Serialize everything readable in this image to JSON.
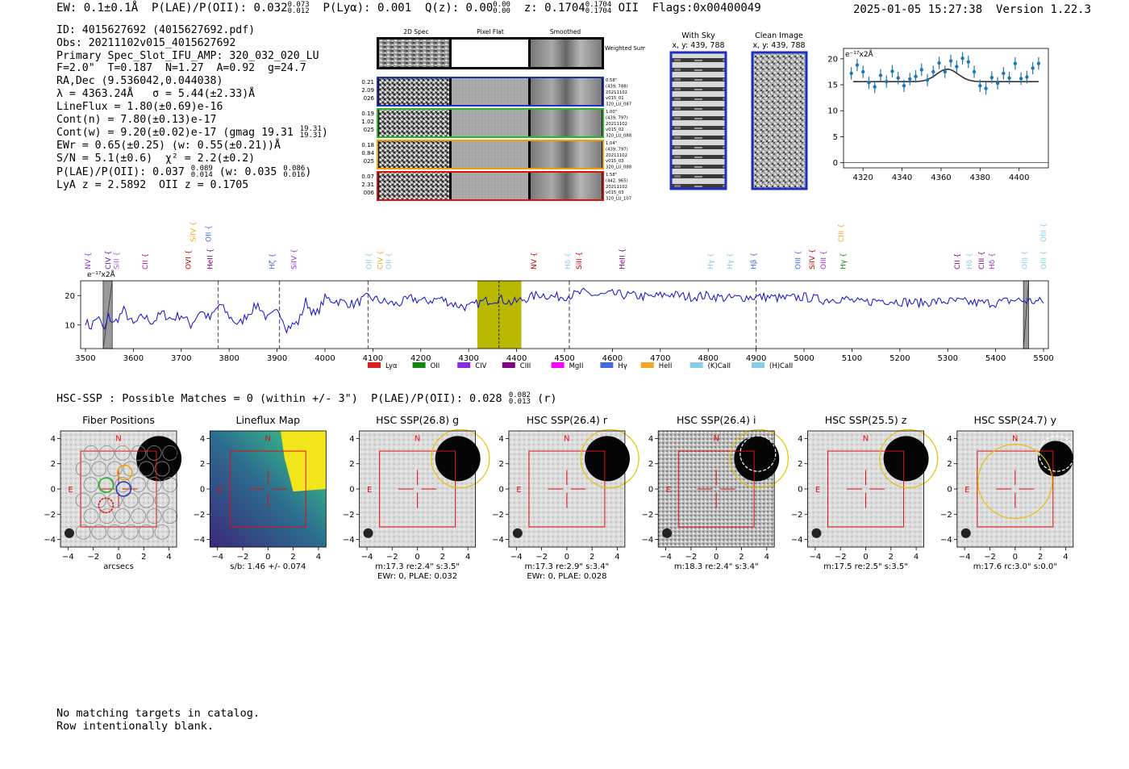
{
  "header": {
    "ew": "EW: 0.1±0.1Å",
    "plae_label": "P(LAE)/P(OII): 0.032",
    "plae_hi": "0.073",
    "plae_lo": "0.012",
    "plya": "P(Lyα): 0.001",
    "qz_label": "Q(z): 0.00",
    "qz_hi": "0.00",
    "qz_lo": "0.00",
    "z_label": "z: 0.1704",
    "z_hi": "0.1704",
    "z_lo": "0.1704",
    "z_line": "OII",
    "flags": "Flags:0x00400049",
    "timestamp": "2025-01-05 15:27:38",
    "version": "Version 1.22.3"
  },
  "info": {
    "id": "ID: 4015627692 (4015627692.pdf)",
    "obs": "Obs: 20211102v015_4015627692",
    "primary": "Primary Spec_Slot_IFU_AMP: 320_032_020_LU",
    "f_line": "F=2.0\"  T=0.187  N=1.27  A=0.92  g=24.7",
    "radec": "RA,Dec (9.536042,0.044038)",
    "lambda": "λ = 4363.24Å   σ = 5.44(±2.33)Å",
    "lineflux": "LineFlux = 1.80(±0.69)e-16",
    "contn": "Cont(n) = 7.80(±0.13)e-17",
    "contw_a": "Cont(w) = 9.20(±0.02)e-17 (gmag 19.31",
    "contw_hi": "19.31",
    "contw_lo": "19.31",
    "contw_b": ")",
    "ewr": "EWr = 0.65(±0.25) (w: 0.55(±0.21))Å",
    "sn": "S/N = 5.1(±0.6)  χ² = 2.2(±0.2)",
    "plae_a": "P(LAE)/P(OII): 0.037",
    "plae_hi": "0.089",
    "plae_lo": "0.014",
    "plae_b": "(w: 0.035",
    "plae_w_hi": "0.086",
    "plae_w_lo": "0.016",
    "plae_c": ")",
    "zline": "LyA z = 2.5892  OII z = 0.1705"
  },
  "cutouts": {
    "col_headers": [
      "2D Spec",
      "Pixel Flat",
      "Smoothed"
    ],
    "weighted_label": "Weighted Sum",
    "rows": [
      {
        "left": [
          "0.21",
          "2.09",
          "026"
        ],
        "right": [
          "0.58\"",
          "(439, 788)",
          "20211102",
          "v015_01",
          "320_LU_087"
        ],
        "color": "#1f2fbf"
      },
      {
        "left": [
          "0.19",
          "1.02",
          "025"
        ],
        "right": [
          "1.00\"",
          "(439, 797)",
          "20211102",
          "v015_02",
          "320_LU_088"
        ],
        "color": "#22bb22"
      },
      {
        "left": [
          "0.18",
          "0.84",
          "025"
        ],
        "right": [
          "1.04\"",
          "(439, 797)",
          "20211102",
          "v015_03",
          "320_LU_088"
        ],
        "color": "#f0a000"
      },
      {
        "left": [
          "0.07",
          "2.31",
          "006"
        ],
        "right": [
          "1.58\"",
          "(442, 965)",
          "20211102",
          "v015_03",
          "320_LU_107"
        ],
        "color": "#e01010"
      }
    ],
    "with_sky": {
      "title": "With Sky",
      "coords": "x, y: 439, 788"
    },
    "clean": {
      "title": "Clean Image",
      "coords": "x, y: 439, 788"
    }
  },
  "chart_data": [
    {
      "type": "scatter",
      "name": "line-fit-zoom",
      "unit_label": "e⁻¹⁷x2Å",
      "x": [
        4314,
        4317,
        4320,
        4323,
        4326,
        4329,
        4332,
        4335,
        4338,
        4341,
        4344,
        4347,
        4350,
        4353,
        4356,
        4359,
        4362,
        4365,
        4368,
        4371,
        4374,
        4377,
        4380,
        4383,
        4386,
        4389,
        4392,
        4395,
        4398,
        4401,
        4404,
        4407,
        4410
      ],
      "y": [
        17.2,
        18.8,
        17.5,
        15.4,
        14.6,
        16.8,
        15.6,
        17.6,
        16.3,
        14.8,
        16.1,
        16.6,
        17.9,
        15.9,
        17.5,
        19.2,
        17.5,
        19.6,
        18.5,
        20.1,
        19.4,
        17.5,
        14.8,
        14.3,
        16.4,
        15.3,
        17.2,
        16.3,
        19.1,
        16.2,
        16.5,
        18.2,
        19.1
      ],
      "yerr": 1.2,
      "fit": {
        "continuum": 15.6,
        "peak": 18.0,
        "center": 4363.24,
        "sigma": 5.44
      },
      "xticks": [
        4320,
        4340,
        4360,
        4380,
        4400
      ],
      "yticks": [
        0,
        5,
        10,
        15,
        20
      ],
      "xlim": [
        4310,
        4415
      ],
      "ylim": [
        -1,
        22
      ]
    },
    {
      "type": "line",
      "name": "full-spectrum",
      "unit_label": "e⁻¹⁷x2Å",
      "xlim": [
        3490,
        5510
      ],
      "ylim": [
        2,
        25
      ],
      "xticks": [
        3500,
        3600,
        3700,
        3800,
        3900,
        4000,
        4100,
        4200,
        4300,
        4400,
        4500,
        4600,
        4700,
        4800,
        4900,
        5000,
        5100,
        5200,
        5300,
        5400,
        5500
      ],
      "yticks": [
        10,
        20
      ],
      "highlight_band": [
        4318,
        4410
      ],
      "center_line": 4363.24,
      "dashed_lines": [
        3777,
        3905,
        4090,
        4510,
        4900
      ],
      "masked": [
        [
          3537,
          3556
        ],
        [
          5458,
          5469
        ]
      ],
      "anchors": [
        [
          3500,
          11.5
        ],
        [
          3510,
          9
        ],
        [
          3525,
          13
        ],
        [
          3540,
          8
        ],
        [
          3548,
          13
        ],
        [
          3560,
          10.5
        ],
        [
          3580,
          15
        ],
        [
          3600,
          10
        ],
        [
          3620,
          13
        ],
        [
          3640,
          11
        ],
        [
          3660,
          14
        ],
        [
          3680,
          12
        ],
        [
          3700,
          13.5
        ],
        [
          3720,
          10
        ],
        [
          3740,
          15
        ],
        [
          3760,
          12
        ],
        [
          3780,
          17
        ],
        [
          3800,
          13
        ],
        [
          3820,
          10
        ],
        [
          3840,
          14
        ],
        [
          3860,
          17
        ],
        [
          3880,
          12
        ],
        [
          3905,
          15
        ],
        [
          3920,
          9
        ],
        [
          3945,
          11
        ],
        [
          3960,
          18
        ],
        [
          3980,
          13
        ],
        [
          4000,
          19
        ],
        [
          4030,
          18
        ],
        [
          4060,
          17
        ],
        [
          4090,
          19.5
        ],
        [
          4120,
          18
        ],
        [
          4150,
          17
        ],
        [
          4180,
          19
        ],
        [
          4210,
          18
        ],
        [
          4240,
          19
        ],
        [
          4270,
          17
        ],
        [
          4300,
          16
        ],
        [
          4330,
          18
        ],
        [
          4363,
          19
        ],
        [
          4390,
          17.5
        ],
        [
          4420,
          19
        ],
        [
          4450,
          20.5
        ],
        [
          4480,
          19.5
        ],
        [
          4510,
          20
        ],
        [
          4540,
          21
        ],
        [
          4570,
          20
        ],
        [
          4600,
          20.5
        ],
        [
          4640,
          20
        ],
        [
          4680,
          19.5
        ],
        [
          4720,
          20.5
        ],
        [
          4760,
          19.5
        ],
        [
          4800,
          20
        ],
        [
          4840,
          19
        ],
        [
          4880,
          19.5
        ],
        [
          4920,
          19.5
        ],
        [
          4960,
          19
        ],
        [
          5000,
          19.5
        ],
        [
          5040,
          18.5
        ],
        [
          5080,
          19
        ],
        [
          5120,
          17.5
        ],
        [
          5160,
          18.5
        ],
        [
          5200,
          18
        ],
        [
          5240,
          17.5
        ],
        [
          5280,
          18
        ],
        [
          5320,
          18
        ],
        [
          5360,
          17.5
        ],
        [
          5400,
          17.5
        ],
        [
          5440,
          18.5
        ],
        [
          5480,
          18
        ],
        [
          5500,
          18
        ]
      ],
      "legend": [
        {
          "label": "Lyα",
          "color": "#e41a1c"
        },
        {
          "label": "OII",
          "color": "#118811"
        },
        {
          "label": "CIV",
          "color": "#8a2be2"
        },
        {
          "label": "CIII",
          "color": "#800080"
        },
        {
          "label": "MgII",
          "color": "#ff00ff"
        },
        {
          "label": "Hγ",
          "color": "#4169e1"
        },
        {
          "label": "HeII",
          "color": "#f5a623"
        },
        {
          "label": "(K)CaII",
          "color": "#87ceeb"
        },
        {
          "label": "(H)CaII",
          "color": "#87ceeb"
        }
      ],
      "line_labels": [
        {
          "text": "NV",
          "x": 3505,
          "row": 0,
          "color": "#9b30d9"
        },
        {
          "text": "CIV",
          "x": 3547,
          "row": 0,
          "color": "#6a0dad"
        },
        {
          "text": "SiII",
          "x": 3565,
          "row": 0,
          "color": "#b060d0"
        },
        {
          "text": "CII",
          "x": 3625,
          "row": 0,
          "color": "#c71585"
        },
        {
          "text": "OVI",
          "x": 3715,
          "row": 0,
          "color": "#cc0000"
        },
        {
          "text": "HeII",
          "x": 3760,
          "row": 0,
          "color": "#800080"
        },
        {
          "text": "SiIV",
          "x": 3725,
          "row": 1,
          "color": "#f5a623"
        },
        {
          "text": "OII",
          "x": 3757,
          "row": 1,
          "color": "#4169e1"
        },
        {
          "text": "Hζ",
          "x": 3890,
          "row": 0,
          "color": "#4169e1"
        },
        {
          "text": "SiIV",
          "x": 3935,
          "row": 0,
          "color": "#9b30d9"
        },
        {
          "text": "OII",
          "x": 4092,
          "row": 0,
          "color": "#87ceeb"
        },
        {
          "text": "CIV",
          "x": 4115,
          "row": 0,
          "color": "#f5a623"
        },
        {
          "text": "OII",
          "x": 4133,
          "row": 0,
          "color": "#87ceeb"
        },
        {
          "text": "NV",
          "x": 4436,
          "row": 0,
          "color": "#cc0000"
        },
        {
          "text": "Hδ",
          "x": 4507,
          "row": 0,
          "color": "#87ceeb"
        },
        {
          "text": "SiII",
          "x": 4530,
          "row": 0,
          "color": "#cc0000"
        },
        {
          "text": "HeII",
          "x": 4620,
          "row": 0,
          "color": "#800080"
        },
        {
          "text": "Hγ",
          "x": 4805,
          "row": 0,
          "color": "#87ceeb"
        },
        {
          "text": "Hγ",
          "x": 4845,
          "row": 0,
          "color": "#87ceeb"
        },
        {
          "text": "Hβ",
          "x": 4895,
          "row": 0,
          "color": "#4169e1"
        },
        {
          "text": "OIII",
          "x": 4987,
          "row": 0,
          "color": "#4169e1"
        },
        {
          "text": "SiIV",
          "x": 5017,
          "row": 0,
          "color": "#cc0000"
        },
        {
          "text": "OIII",
          "x": 5040,
          "row": 0,
          "color": "#9b30d9"
        },
        {
          "text": "Hγ",
          "x": 5082,
          "row": 0,
          "color": "#118811"
        },
        {
          "text": "CIII",
          "x": 5077,
          "row": 1,
          "color": "#f5a623"
        },
        {
          "text": "CII",
          "x": 5320,
          "row": 0,
          "color": "#800080"
        },
        {
          "text": "Hδ",
          "x": 5345,
          "row": 0,
          "color": "#87ceeb"
        },
        {
          "text": "CIII",
          "x": 5370,
          "row": 0,
          "color": "#800080"
        },
        {
          "text": "Hδ",
          "x": 5392,
          "row": 0,
          "color": "#9b30d9"
        },
        {
          "text": "OIII",
          "x": 5460,
          "row": 0,
          "color": "#87ceeb"
        },
        {
          "text": "OIII",
          "x": 5500,
          "row": 0,
          "color": "#87ceeb"
        },
        {
          "text": "OIII",
          "x": 5500,
          "row": 1,
          "color": "#87ceeb"
        }
      ]
    }
  ],
  "hsc": {
    "title_a": "HSC-SSP : Possible Matches = 0 (within +/- 3\")  P(LAE)/P(OII): 0.028",
    "title_hi": "0.082",
    "title_lo": "0.013",
    "title_b": "(r)",
    "tick_labels": [
      "−4",
      "−2",
      "0",
      "2",
      "4"
    ],
    "panels": [
      {
        "title": "Fiber Positions",
        "cap1": "arcsecs",
        "cap2": ""
      },
      {
        "title": "Lineflux Map",
        "cap1": "s/b: 1.46 +/- 0.074",
        "cap2": ""
      },
      {
        "title": "HSC SSP(26.8) g",
        "cap1": "m:17.3  re:2.4\"  s:3.5\"",
        "cap2": "EWr: 0, PLAE: 0.032"
      },
      {
        "title": "HSC SSP(26.4) r",
        "cap1": "m:17.3  re:2.9\"  s:3.4\"",
        "cap2": "EWr: 0, PLAE: 0.028"
      },
      {
        "title": "HSC SSP(26.4) i",
        "cap1": "m:18.3  re:2.4\"  s:3.4\"",
        "cap2": ""
      },
      {
        "title": "HSC SSP(25.5) z",
        "cap1": "m:17.5  re:2.5\"  s:3.5\"",
        "cap2": ""
      },
      {
        "title": "HSC SSP(24.7) y",
        "cap1": "m:17.6  rc:3.0\"  s:0.0\"",
        "cap2": ""
      }
    ],
    "compass_n": "N",
    "compass_e": "E"
  },
  "footer": {
    "line1": "No matching targets in catalog.",
    "line2": "Row intentionally blank."
  }
}
